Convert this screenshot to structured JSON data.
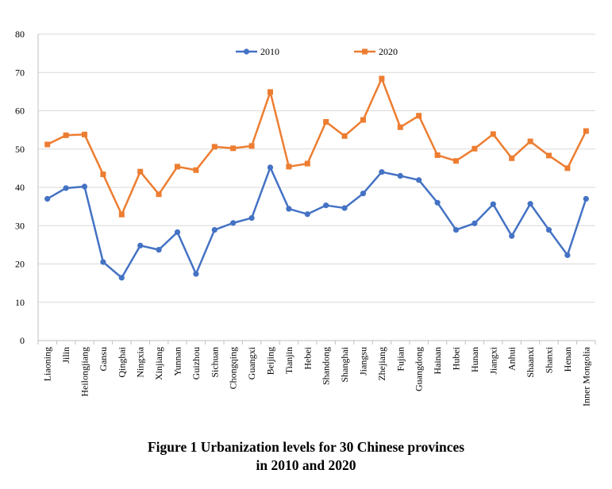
{
  "figure": {
    "caption_line1": "Figure 1  Urbanization levels for 30 Chinese provinces",
    "caption_line2": "in 2010 and 2020"
  },
  "chart_data": {
    "type": "line",
    "categories": [
      "Liaoning",
      "Jilin",
      "Heilongjiang",
      "Gansu",
      "Qinghai",
      "Ningxia",
      "Xinjiang",
      "Yunnan",
      "Guizhou",
      "Sichuan",
      "Chongqing",
      "Guangxi",
      "Beijing",
      "Tianjin",
      "Hebei",
      "Shandong",
      "Shanghai",
      "Jiangsu",
      "Zhejiang",
      "Fujian",
      "Guangdong",
      "Hainan",
      "Hubei",
      "Hunan",
      "Jiangxi",
      "Anhui",
      "Shaanxi",
      "Shanxi",
      "Henan",
      "Inner Mongolia"
    ],
    "series": [
      {
        "name": "2010",
        "color": "#4472C4",
        "marker": "circle",
        "values": [
          37.0,
          39.8,
          40.2,
          20.5,
          16.4,
          24.8,
          23.7,
          28.3,
          17.4,
          28.9,
          30.7,
          32.0,
          45.2,
          34.4,
          33.0,
          35.3,
          34.6,
          38.4,
          44.0,
          43.0,
          41.9,
          36.0,
          28.9,
          30.6,
          35.6,
          27.3,
          35.7,
          28.9,
          22.3,
          37.0
        ]
      },
      {
        "name": "2020",
        "color": "#ED7D31",
        "marker": "square",
        "values": [
          51.2,
          53.6,
          53.8,
          43.4,
          32.9,
          44.1,
          38.2,
          45.4,
          44.5,
          50.6,
          50.2,
          50.8,
          64.9,
          45.4,
          46.2,
          57.1,
          53.4,
          57.6,
          68.4,
          55.7,
          58.7,
          48.4,
          46.9,
          50.1,
          53.9,
          47.6,
          52.0,
          48.3,
          45.0,
          54.7
        ]
      }
    ],
    "ylim": [
      0,
      80
    ],
    "yticks": [
      0,
      10,
      20,
      30,
      40,
      50,
      60,
      70,
      80
    ],
    "grid": true,
    "legend_position": "top-center"
  }
}
